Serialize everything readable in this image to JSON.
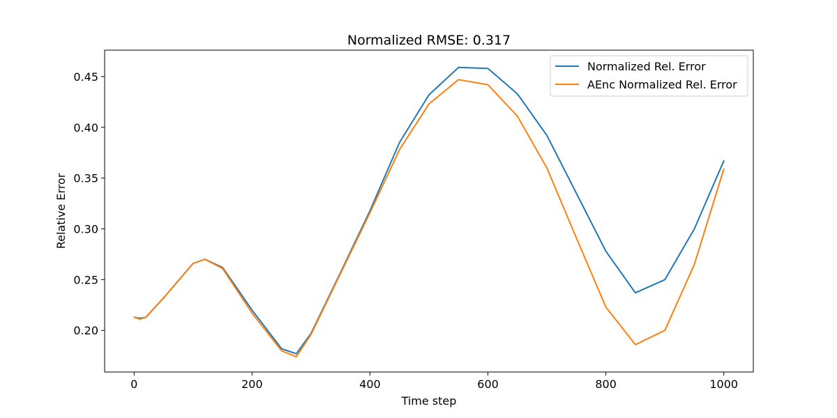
{
  "chart_data": {
    "type": "line",
    "title": "Normalized RMSE: 0.317",
    "xlabel": "Time step",
    "ylabel": "Relative Error",
    "xlim": [
      -50,
      1050
    ],
    "ylim": [
      0.159,
      0.476
    ],
    "xticks": [
      0,
      200,
      400,
      600,
      800,
      1000
    ],
    "xtick_labels": [
      "0",
      "200",
      "400",
      "600",
      "800",
      "1000"
    ],
    "yticks": [
      0.2,
      0.25,
      0.3,
      0.35,
      0.4,
      0.45
    ],
    "ytick_labels": [
      "0.20",
      "0.25",
      "0.30",
      "0.35",
      "0.40",
      "0.45"
    ],
    "grid": false,
    "legend_position": "upper right",
    "x": [
      0,
      10,
      20,
      50,
      100,
      120,
      150,
      200,
      250,
      275,
      300,
      350,
      400,
      450,
      500,
      550,
      600,
      650,
      700,
      750,
      800,
      850,
      900,
      950,
      1000
    ],
    "series": [
      {
        "name": "Normalized Rel. Error",
        "color": "#1f77b4",
        "values": [
          0.213,
          0.212,
          0.213,
          0.232,
          0.266,
          0.27,
          0.262,
          0.22,
          0.182,
          0.177,
          0.197,
          0.257,
          0.318,
          0.385,
          0.432,
          0.459,
          0.458,
          0.433,
          0.392,
          0.335,
          0.278,
          0.237,
          0.25,
          0.3,
          0.367
        ]
      },
      {
        "name": "AEnc Normalized Rel. Error",
        "color": "#ff7f0e",
        "values": [
          0.213,
          0.211,
          0.213,
          0.232,
          0.266,
          0.27,
          0.261,
          0.217,
          0.18,
          0.174,
          0.196,
          0.256,
          0.316,
          0.378,
          0.423,
          0.447,
          0.442,
          0.411,
          0.36,
          0.291,
          0.223,
          0.186,
          0.2,
          0.265,
          0.359
        ]
      }
    ]
  }
}
